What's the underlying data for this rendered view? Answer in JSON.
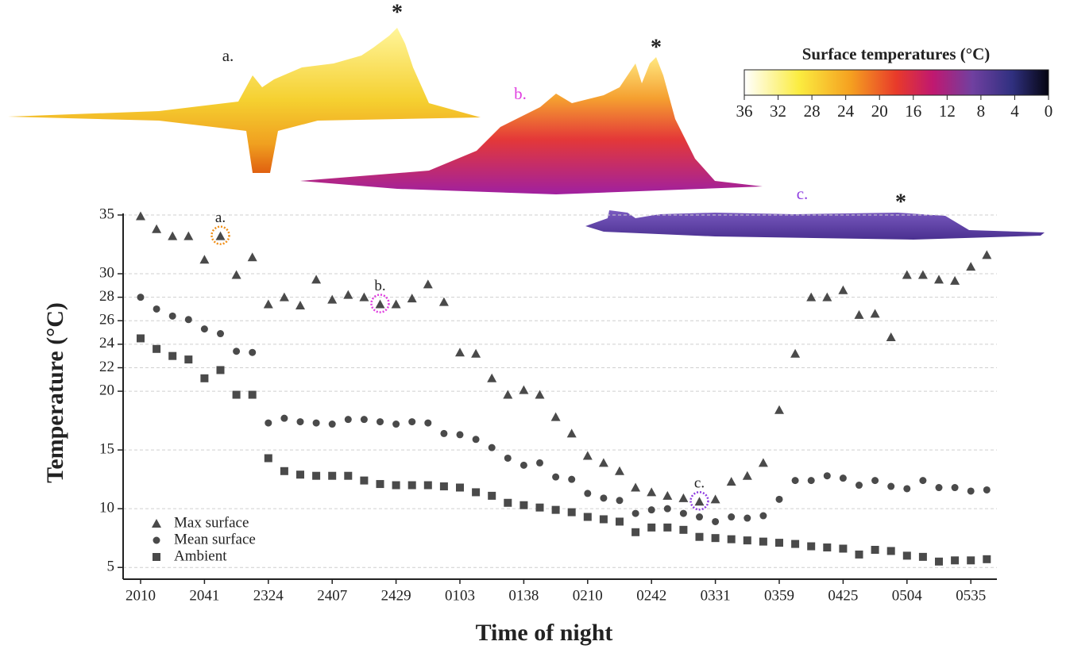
{
  "chart_data": {
    "type": "scatter",
    "xlabel": "Time of night",
    "ylabel": "Temperature (°C)",
    "categories": [
      "2010",
      null,
      null,
      null,
      "2041",
      null,
      null,
      null,
      "2324",
      null,
      null,
      null,
      "2407",
      null,
      null,
      null,
      "2429",
      null,
      null,
      null,
      "0103",
      null,
      null,
      null,
      "0138",
      null,
      null,
      null,
      "0210",
      null,
      null,
      null,
      "0242",
      null,
      null,
      null,
      "0331",
      null,
      null,
      null,
      "0359",
      null,
      null,
      null,
      "0425",
      null,
      null,
      null,
      "0504",
      null,
      null,
      null,
      "0535",
      null
    ],
    "ylim": [
      4,
      35
    ],
    "yticks": [
      5,
      10,
      15,
      20,
      22,
      24,
      26,
      28,
      30,
      35
    ],
    "grid": true,
    "legend": "lower left",
    "series": [
      {
        "name": "Max surface",
        "marker": "triangle",
        "color": "#4a4a4a",
        "values": [
          34.9,
          33.8,
          33.2,
          33.2,
          31.2,
          33.2,
          29.9,
          31.4,
          27.4,
          28.0,
          27.3,
          29.5,
          27.8,
          28.2,
          28.0,
          27.4,
          27.4,
          27.9,
          29.1,
          27.6,
          23.3,
          23.2,
          21.1,
          19.7,
          20.1,
          19.7,
          17.8,
          16.4,
          14.5,
          13.9,
          13.2,
          11.8,
          11.4,
          11.1,
          10.9,
          10.6,
          10.8,
          12.3,
          12.8,
          13.9,
          18.4,
          23.2,
          28.0,
          28.0,
          28.6,
          26.5,
          26.6,
          24.6,
          29.9,
          29.9,
          29.5,
          29.4,
          30.6,
          31.6
        ]
      },
      {
        "name": "Mean surface",
        "marker": "circle",
        "color": "#4a4a4a",
        "values": [
          28.0,
          27.0,
          26.4,
          26.1,
          25.3,
          24.9,
          23.4,
          23.3,
          17.3,
          17.7,
          17.4,
          17.3,
          17.2,
          17.6,
          17.6,
          17.4,
          17.2,
          17.4,
          17.3,
          16.4,
          16.3,
          15.9,
          15.2,
          14.3,
          13.7,
          13.9,
          12.7,
          12.5,
          11.3,
          10.9,
          10.7,
          9.6,
          9.9,
          10.0,
          9.6,
          9.3,
          8.9,
          9.3,
          9.2,
          9.4,
          10.8,
          12.4,
          12.4,
          12.8,
          12.6,
          12.0,
          12.4,
          11.9,
          11.7,
          12.4,
          11.8,
          11.8,
          11.5,
          11.6
        ]
      },
      {
        "name": "Ambient",
        "marker": "square",
        "color": "#4a4a4a",
        "values": [
          24.5,
          23.6,
          23.0,
          22.7,
          21.1,
          21.8,
          19.7,
          19.7,
          14.3,
          13.2,
          12.9,
          12.8,
          12.8,
          12.8,
          12.4,
          12.1,
          12.0,
          12.0,
          12.0,
          11.9,
          11.8,
          11.4,
          11.1,
          10.5,
          10.3,
          10.1,
          9.9,
          9.7,
          9.3,
          9.1,
          8.9,
          8.0,
          8.4,
          8.4,
          8.2,
          7.6,
          7.5,
          7.4,
          7.3,
          7.2,
          7.1,
          7.0,
          6.8,
          6.7,
          6.6,
          6.1,
          6.5,
          6.4,
          6.0,
          5.9,
          5.5,
          5.6,
          5.6,
          5.7
        ]
      }
    ],
    "annotations": [
      {
        "text": "a.",
        "color": "#f0901a"
      },
      {
        "text": "b.",
        "color": "#e040e0"
      },
      {
        "text": "c.",
        "color": "#9040e0"
      }
    ],
    "surfaces": [
      {
        "label": "a.",
        "label_color": "#222222",
        "peak": "*"
      },
      {
        "label": "b.",
        "label_color": "#e040e0",
        "peak": "*"
      },
      {
        "label": "c.",
        "label_color": "#9040e0",
        "peak": "*"
      }
    ],
    "colorbar": {
      "title": "Surface temperatures (°C)",
      "lim": [
        36,
        0
      ],
      "ticks": [
        36,
        32,
        28,
        24,
        20,
        16,
        12,
        8,
        4,
        0
      ]
    }
  }
}
